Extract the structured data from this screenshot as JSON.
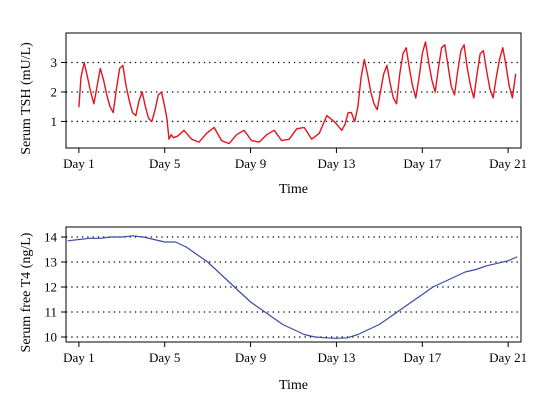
{
  "chart_data": [
    {
      "type": "line",
      "xlabel": "Time",
      "ylabel": "Serum TSH (mU/L)",
      "xlim": [
        0.4,
        21.6
      ],
      "ylim": [
        0.1,
        4.0
      ],
      "x_ticks": [
        1,
        5,
        9,
        13,
        17,
        21
      ],
      "x_tick_labels": [
        "Day 1",
        "Day 5",
        "Day 9",
        "Day 13",
        "Day 17",
        "Day 21"
      ],
      "y_ticks": [
        1,
        2,
        3
      ],
      "y_tick_labels": [
        "1",
        "2",
        "3"
      ],
      "grid": "horizontal dotted",
      "line_color": "#e4141e",
      "series": [
        {
          "x": [
            1.0,
            1.1,
            1.25,
            1.4,
            1.55,
            1.7,
            1.85,
            2.0,
            2.15,
            2.3,
            2.45,
            2.6,
            2.75,
            2.9,
            3.05,
            3.2,
            3.35,
            3.5,
            3.65,
            3.8,
            3.95,
            4.1,
            4.25,
            4.4,
            4.55,
            4.7,
            4.85,
            5.0,
            5.1,
            5.2,
            5.3,
            5.4,
            5.6,
            5.9,
            6.25,
            6.6,
            6.95,
            7.3,
            7.65,
            8.0,
            8.35,
            8.7,
            9.05,
            9.4,
            9.75,
            10.1,
            10.45,
            10.8,
            11.15,
            11.5,
            11.85,
            12.2,
            12.55,
            12.9,
            13.25,
            13.4,
            13.55,
            13.7,
            13.85,
            14.0,
            14.15,
            14.3,
            14.45,
            14.6,
            14.75,
            14.9,
            15.05,
            15.2,
            15.35,
            15.5,
            15.65,
            15.8,
            15.95,
            16.1,
            16.25,
            16.4,
            16.55,
            16.7,
            16.85,
            17.0,
            17.15,
            17.3,
            17.45,
            17.6,
            17.75,
            17.9,
            18.05,
            18.2,
            18.35,
            18.5,
            18.65,
            18.8,
            18.95,
            19.1,
            19.25,
            19.4,
            19.55,
            19.7,
            19.85,
            20.0,
            20.15,
            20.3,
            20.45,
            20.6,
            20.75,
            20.9,
            21.05,
            21.2,
            21.35
          ],
          "y": [
            1.5,
            2.5,
            3.0,
            2.5,
            2.0,
            1.6,
            2.2,
            2.8,
            2.4,
            1.9,
            1.5,
            1.3,
            2.1,
            2.8,
            2.9,
            2.2,
            1.7,
            1.3,
            1.2,
            1.7,
            2.0,
            1.5,
            1.1,
            1.0,
            1.4,
            1.9,
            2.0,
            1.5,
            1.1,
            0.4,
            0.55,
            0.45,
            0.5,
            0.7,
            0.4,
            0.3,
            0.6,
            0.8,
            0.35,
            0.25,
            0.55,
            0.7,
            0.35,
            0.3,
            0.55,
            0.7,
            0.35,
            0.4,
            0.75,
            0.8,
            0.4,
            0.6,
            1.2,
            1.0,
            0.7,
            0.9,
            1.3,
            1.3,
            1.0,
            1.5,
            2.5,
            3.1,
            2.6,
            2.0,
            1.6,
            1.4,
            2.0,
            2.6,
            2.9,
            2.3,
            1.8,
            1.6,
            2.6,
            3.3,
            3.5,
            2.8,
            2.2,
            1.8,
            2.5,
            3.3,
            3.7,
            3.0,
            2.4,
            2.0,
            2.8,
            3.5,
            3.6,
            2.9,
            2.2,
            1.9,
            2.7,
            3.4,
            3.6,
            2.8,
            2.2,
            1.8,
            2.6,
            3.3,
            3.4,
            2.7,
            2.1,
            1.8,
            2.5,
            3.1,
            3.5,
            2.9,
            2.2,
            1.8,
            2.6
          ]
        }
      ]
    },
    {
      "type": "line",
      "xlabel": "Time",
      "ylabel": "Serum free T4 (ng/L)",
      "xlim": [
        0.4,
        21.6
      ],
      "ylim": [
        9.8,
        14.4
      ],
      "x_ticks": [
        1,
        5,
        9,
        13,
        17,
        21
      ],
      "x_tick_labels": [
        "Day 1",
        "Day 5",
        "Day 9",
        "Day 13",
        "Day 17",
        "Day 21"
      ],
      "y_ticks": [
        10,
        11,
        12,
        13,
        14
      ],
      "y_tick_labels": [
        "10",
        "11",
        "12",
        "13",
        "14"
      ],
      "grid": "horizontal dotted",
      "line_color": "#3c4ba8",
      "series": [
        {
          "x": [
            0.5,
            1.0,
            1.5,
            2.0,
            2.5,
            3.0,
            3.5,
            4.0,
            4.5,
            5.0,
            5.5,
            6.0,
            6.5,
            7.0,
            7.5,
            8.0,
            8.5,
            9.0,
            9.5,
            10.0,
            10.5,
            11.0,
            11.5,
            12.0,
            12.5,
            13.0,
            13.5,
            14.0,
            14.5,
            15.0,
            15.5,
            16.0,
            16.5,
            17.0,
            17.5,
            18.0,
            18.5,
            19.0,
            19.5,
            20.0,
            20.5,
            21.0,
            21.4
          ],
          "y": [
            13.85,
            13.9,
            13.95,
            13.95,
            14.0,
            14.0,
            14.05,
            14.0,
            13.9,
            13.8,
            13.8,
            13.6,
            13.3,
            13.0,
            12.6,
            12.2,
            11.8,
            11.4,
            11.1,
            10.8,
            10.5,
            10.3,
            10.1,
            10.0,
            9.97,
            9.95,
            9.97,
            10.1,
            10.3,
            10.5,
            10.8,
            11.1,
            11.4,
            11.7,
            12.0,
            12.2,
            12.4,
            12.6,
            12.7,
            12.85,
            12.95,
            13.05,
            13.2
          ]
        }
      ]
    }
  ]
}
